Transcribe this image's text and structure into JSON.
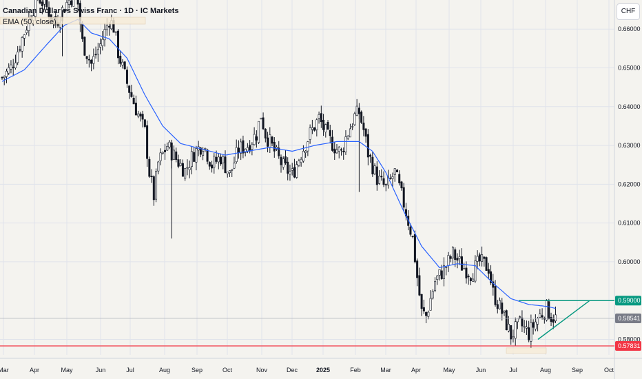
{
  "header": {
    "title": "Canadian Dollar vs Swiss Franc · 1D · IC Markets",
    "indicator": "EMA (50, close)",
    "currency_button": "CHF"
  },
  "chart_data": {
    "type": "candlestick",
    "symbol": "CADCHF",
    "timeframe": "1D",
    "ylim": [
      0.576,
      0.6675
    ],
    "y_ticks": [
      "0.66000",
      "0.65000",
      "0.64000",
      "0.63000",
      "0.62000",
      "0.61000",
      "0.60000",
      "0.58000"
    ],
    "x_ticks": [
      "Mar",
      "Apr",
      "May",
      "Jun",
      "Jul",
      "Aug",
      "Sep",
      "Oct",
      "Nov",
      "Dec",
      "2025",
      "Feb",
      "Mar",
      "Apr",
      "May",
      "Jun",
      "Jul",
      "Aug",
      "Sep",
      "Oct"
    ],
    "price_labels": [
      {
        "text": "0.59000",
        "value": 0.59,
        "color": "#089981"
      },
      {
        "text": "0.58541",
        "value": 0.58541,
        "color": "#787b86"
      },
      {
        "text": "0.57831",
        "value": 0.57831,
        "color": "#f23645"
      }
    ],
    "price_path": [
      [
        0,
        0.6475
      ],
      [
        4,
        0.65
      ],
      [
        8,
        0.656
      ],
      [
        12,
        0.6625
      ],
      [
        16,
        0.6685
      ],
      [
        20,
        0.6655
      ],
      [
        24,
        0.6615
      ],
      [
        28,
        0.666
      ],
      [
        32,
        0.669
      ],
      [
        34,
        0.6665
      ],
      [
        36,
        0.6565
      ],
      [
        40,
        0.651
      ],
      [
        44,
        0.656
      ],
      [
        48,
        0.6625
      ],
      [
        50,
        0.6605
      ],
      [
        52,
        0.654
      ],
      [
        56,
        0.646
      ],
      [
        60,
        0.6395
      ],
      [
        64,
        0.6335
      ],
      [
        66,
        0.623
      ],
      [
        68,
        0.617
      ],
      [
        70,
        0.6255
      ],
      [
        74,
        0.63
      ],
      [
        78,
        0.6265
      ],
      [
        82,
        0.6235
      ],
      [
        86,
        0.628
      ],
      [
        90,
        0.6305
      ],
      [
        94,
        0.625
      ],
      [
        98,
        0.627
      ],
      [
        102,
        0.6225
      ],
      [
        106,
        0.629
      ],
      [
        110,
        0.63
      ],
      [
        114,
        0.633
      ],
      [
        116,
        0.638
      ],
      [
        118,
        0.633
      ],
      [
        122,
        0.6285
      ],
      [
        126,
        0.6245
      ],
      [
        130,
        0.6225
      ],
      [
        134,
        0.628
      ],
      [
        138,
        0.633
      ],
      [
        142,
        0.637
      ],
      [
        146,
        0.632
      ],
      [
        150,
        0.629
      ],
      [
        152,
        0.628
      ],
      [
        154,
        0.632
      ],
      [
        158,
        0.6375
      ],
      [
        160,
        0.6385
      ],
      [
        162,
        0.634
      ],
      [
        164,
        0.628
      ],
      [
        168,
        0.6215
      ],
      [
        172,
        0.619
      ],
      [
        176,
        0.623
      ],
      [
        180,
        0.615
      ],
      [
        184,
        0.606
      ],
      [
        186,
        0.596
      ],
      [
        188,
        0.587
      ],
      [
        190,
        0.586
      ],
      [
        194,
        0.595
      ],
      [
        198,
        0.598
      ],
      [
        202,
        0.602
      ],
      [
        206,
        0.599
      ],
      [
        210,
        0.597
      ],
      [
        214,
        0.6
      ],
      [
        218,
        0.5985
      ],
      [
        220,
        0.592
      ],
      [
        224,
        0.587
      ],
      [
        228,
        0.581
      ],
      [
        232,
        0.584
      ],
      [
        236,
        0.5815
      ],
      [
        240,
        0.5855
      ],
      [
        244,
        0.588
      ],
      [
        246,
        0.586
      ],
      [
        248,
        0.5854
      ]
    ],
    "ema_path": [
      [
        0,
        0.6465
      ],
      [
        10,
        0.6495
      ],
      [
        20,
        0.656
      ],
      [
        28,
        0.661
      ],
      [
        34,
        0.6625
      ],
      [
        40,
        0.659
      ],
      [
        48,
        0.6575
      ],
      [
        56,
        0.6525
      ],
      [
        64,
        0.643
      ],
      [
        72,
        0.635
      ],
      [
        80,
        0.6305
      ],
      [
        90,
        0.629
      ],
      [
        100,
        0.6275
      ],
      [
        110,
        0.6285
      ],
      [
        120,
        0.6295
      ],
      [
        130,
        0.6285
      ],
      [
        140,
        0.63
      ],
      [
        150,
        0.631
      ],
      [
        160,
        0.631
      ],
      [
        166,
        0.6285
      ],
      [
        172,
        0.623
      ],
      [
        180,
        0.613
      ],
      [
        188,
        0.604
      ],
      [
        196,
        0.5985
      ],
      [
        204,
        0.5995
      ],
      [
        212,
        0.599
      ],
      [
        220,
        0.5945
      ],
      [
        228,
        0.5905
      ],
      [
        236,
        0.589
      ],
      [
        244,
        0.5885
      ],
      [
        248,
        0.588
      ]
    ],
    "annotations": {
      "resistance_line": {
        "value": 0.59,
        "color": "#089981"
      },
      "support_line": {
        "value": 0.57831,
        "color": "#f23645"
      },
      "current_price_line": {
        "value": 0.58541,
        "color": "#9598a1"
      },
      "triangle_resistance": {
        "from": [
          0.59,
          0.59
        ],
        "to": [
          0.74,
          0.59
        ]
      },
      "triangle_support": {
        "from": [
          0.65,
          0.58
        ],
        "to": [
          0.74,
          0.59
        ]
      }
    },
    "colors": {
      "up": "#089981",
      "down": "#f23645",
      "bar": "#131722",
      "ema": "#2962ff",
      "grid": "#e0e3eb"
    },
    "grid": true
  }
}
